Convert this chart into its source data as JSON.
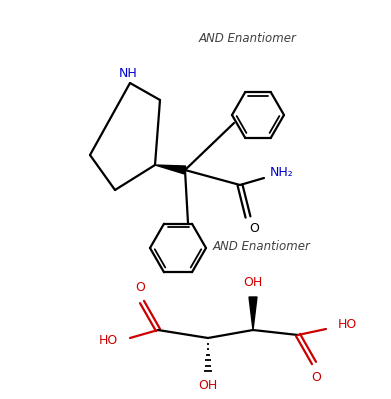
{
  "bg_color": "#ffffff",
  "text_and_enantiomer_1": "AND Enantiomer",
  "text_and_enantiomer_2": "AND Enantiomer",
  "text_nh": "NH",
  "text_nh2": "NH₂",
  "text_o1": "O",
  "text_oh1": "OH",
  "text_oh2": "OH",
  "text_ho1": "HO",
  "text_ho2": "HO",
  "text_o2": "O",
  "text_o3": "O",
  "figsize": [
    3.91,
    3.99
  ],
  "dpi": 100,
  "black": "#000000",
  "blue": "#0000cd",
  "red": "#cc0000",
  "dark_gray": "#404040"
}
